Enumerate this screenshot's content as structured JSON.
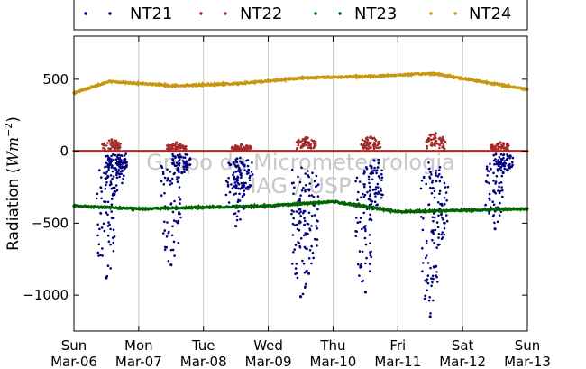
{
  "chart_data": {
    "type": "scatter",
    "ylabel": "Radiation (Wm^-2)",
    "ylabel_parts": {
      "text": "Radiation (",
      "unit_main": "Wm",
      "unit_exp": "−2",
      "close": ")"
    },
    "ylim": [
      -1250,
      800
    ],
    "yticks": [
      500,
      0,
      -500,
      -1000
    ],
    "ytick_labels": [
      "500",
      "0",
      "−500",
      "−1000"
    ],
    "xlim": [
      "2016-03-06",
      "2016-03-13"
    ],
    "xticks": [
      {
        "date": "2016-03-06",
        "day": "Sun",
        "label": "Mar-06"
      },
      {
        "date": "2016-03-07",
        "day": "Mon",
        "label": "Mar-07"
      },
      {
        "date": "2016-03-08",
        "day": "Tue",
        "label": "Mar-08"
      },
      {
        "date": "2016-03-09",
        "day": "Wed",
        "label": "Mar-09"
      },
      {
        "date": "2016-03-10",
        "day": "Thu",
        "label": "Mar-10"
      },
      {
        "date": "2016-03-11",
        "day": "Fri",
        "label": "Mar-11"
      },
      {
        "date": "2016-03-12",
        "day": "Sat",
        "label": "Mar-12"
      },
      {
        "date": "2016-03-13",
        "day": "Sun",
        "label": "Mar-13"
      }
    ],
    "grid": "vertical",
    "legend": {
      "placement": "top",
      "ncol": 4
    },
    "watermark": [
      "Grupo de Micrometeorologia",
      "IAG / USP"
    ],
    "series": [
      {
        "name": "NT21",
        "color": "#00007f",
        "x": [
          "Mar-06 12:00",
          "Mar-06 15:00",
          "Mar-06 16:00",
          "Mar-07 12:00",
          "Mar-07 16:00",
          "Mar-08 12:00",
          "Mar-08 15:00",
          "Mar-09 12:00",
          "Mar-09 15:00",
          "Mar-10 12:00",
          "Mar-10 15:00",
          "Mar-11 12:00",
          "Mar-11 15:00",
          "Mar-12 12:00",
          "Mar-12 15:00"
        ],
        "y": [
          -880,
          -300,
          -150,
          -790,
          -150,
          -520,
          -300,
          -1010,
          -850,
          -980,
          -400,
          -1150,
          -650,
          -540,
          -150
        ]
      },
      {
        "name": "NT22",
        "color": "#a52a2a",
        "x": [
          "Mar-06 00:00",
          "Mar-06 14:00",
          "Mar-07 14:00",
          "Mar-08 14:00",
          "Mar-09 14:00",
          "Mar-10 14:00",
          "Mar-11 14:00",
          "Mar-12 14:00",
          "Mar-13 00:00"
        ],
        "y": [
          0,
          80,
          60,
          45,
          95,
          100,
          125,
          60,
          0
        ]
      },
      {
        "name": "NT23",
        "color": "#006400",
        "x": [
          "Mar-06 00:00",
          "Mar-07 00:00",
          "Mar-08 00:00",
          "Mar-09 00:00",
          "Mar-10 00:00",
          "Mar-11 00:00",
          "Mar-12 00:00",
          "Mar-13 00:00"
        ],
        "y": [
          -380,
          -400,
          -390,
          -380,
          -350,
          -420,
          -410,
          -400
        ]
      },
      {
        "name": "NT24",
        "color": "#c8960f",
        "x": [
          "Mar-06 00:00",
          "Mar-06 13:00",
          "Mar-07 13:00",
          "Mar-08 13:00",
          "Mar-09 13:00",
          "Mar-10 13:00",
          "Mar-11 13:00",
          "Mar-12 13:00",
          "Mar-13 00:00"
        ],
        "y": [
          405,
          485,
          455,
          470,
          510,
          520,
          540,
          465,
          430
        ]
      }
    ]
  }
}
